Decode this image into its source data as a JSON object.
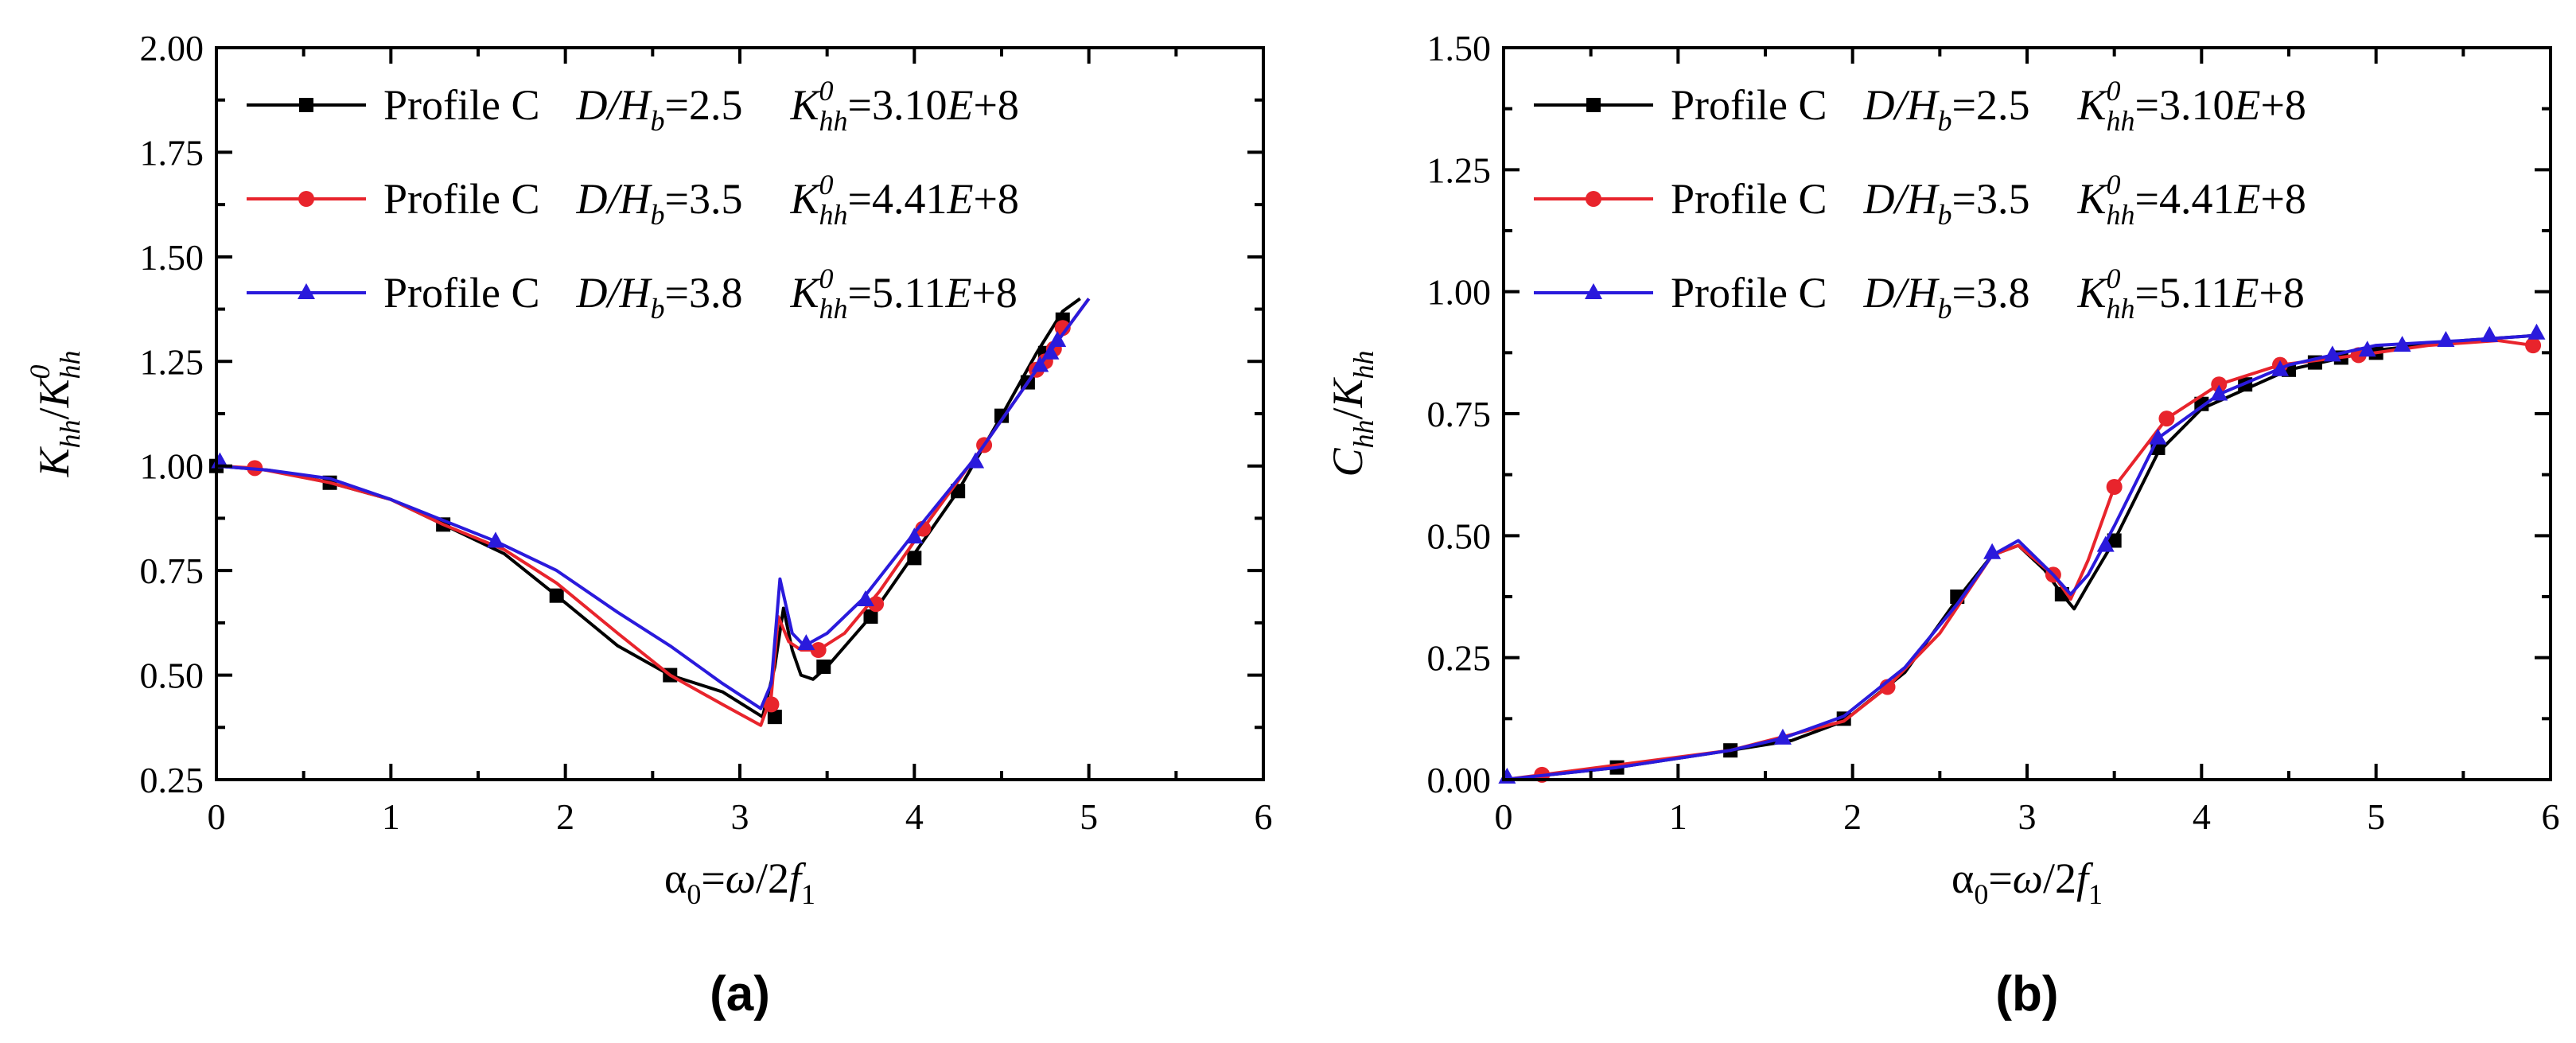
{
  "chart_data": [
    {
      "type": "line",
      "panel_label": "(a)",
      "xlabel": "α0=ω/2f1",
      "ylabel": "Khh/Khh0",
      "xlim": [
        0,
        6
      ],
      "ylim": [
        0.25,
        2.0
      ],
      "xticks": [
        "0",
        "1",
        "2",
        "3",
        "4",
        "5",
        "6"
      ],
      "yticks": [
        "0.25",
        "0.50",
        "0.75",
        "1.00",
        "1.25",
        "1.50",
        "1.75",
        "2.00"
      ],
      "legend_position": "top-left",
      "series": [
        {
          "name": "Profile C D/Hb=2.5 Khh0=3.10E+8",
          "profile": "Profile C",
          "ratio_value": "2.5",
          "k0_value": "3.10E+8",
          "color": "#000000",
          "marker": "square",
          "line_x": [
            0,
            0.3,
            0.65,
            1.0,
            1.3,
            1.65,
            1.95,
            2.3,
            2.6,
            2.9,
            3.13,
            3.2,
            3.25,
            3.3,
            3.35,
            3.42,
            3.5,
            3.75,
            4.0,
            4.25,
            4.5,
            4.7,
            4.85,
            4.95
          ],
          "line_y": [
            1.0,
            0.99,
            0.96,
            0.92,
            0.86,
            0.79,
            0.69,
            0.57,
            0.5,
            0.46,
            0.4,
            0.52,
            0.66,
            0.56,
            0.5,
            0.49,
            0.52,
            0.64,
            0.79,
            0.94,
            1.12,
            1.27,
            1.37,
            1.4
          ],
          "marker_x": [
            0,
            0.65,
            1.3,
            1.95,
            2.6,
            3.2,
            3.48,
            3.75,
            4.0,
            4.25,
            4.5,
            4.65,
            4.75,
            4.85
          ],
          "marker_y": [
            1.0,
            0.96,
            0.86,
            0.69,
            0.5,
            0.4,
            0.52,
            0.64,
            0.78,
            0.94,
            1.12,
            1.2,
            1.27,
            1.35
          ]
        },
        {
          "name": "Profile C D/Hb=3.5 Khh0=4.41E+8",
          "profile": "Profile C",
          "ratio_value": "3.5",
          "k0_value": "4.41E+8",
          "color": "#e8242c",
          "marker": "circle",
          "line_x": [
            0,
            0.22,
            0.65,
            1.0,
            1.3,
            1.65,
            1.95,
            2.3,
            2.6,
            2.9,
            3.12,
            3.18,
            3.22,
            3.28,
            3.35,
            3.45,
            3.6,
            3.8,
            4.05,
            4.4,
            4.7,
            5.0
          ],
          "line_y": [
            1.0,
            0.995,
            0.96,
            0.92,
            0.86,
            0.8,
            0.72,
            0.6,
            0.5,
            0.43,
            0.38,
            0.45,
            0.64,
            0.58,
            0.56,
            0.56,
            0.6,
            0.7,
            0.85,
            1.05,
            1.23,
            1.4
          ],
          "marker_x": [
            0.22,
            3.18,
            3.45,
            3.78,
            4.05,
            4.4,
            4.7,
            4.75,
            4.8,
            4.85
          ],
          "marker_y": [
            0.995,
            0.43,
            0.56,
            0.67,
            0.85,
            1.05,
            1.23,
            1.25,
            1.28,
            1.33
          ]
        },
        {
          "name": "Profile C D/Hb=3.8 Khh0=5.11E+8",
          "profile": "Profile C",
          "ratio_value": "3.8",
          "k0_value": "5.11E+8",
          "color": "#2a1adc",
          "marker": "triangle",
          "line_x": [
            0,
            0.3,
            0.65,
            1.0,
            1.3,
            1.6,
            1.95,
            2.3,
            2.6,
            2.9,
            3.12,
            3.18,
            3.23,
            3.3,
            3.37,
            3.5,
            3.7,
            4.0,
            4.35,
            4.7,
            5.0
          ],
          "line_y": [
            1.0,
            0.99,
            0.97,
            0.92,
            0.87,
            0.82,
            0.75,
            0.65,
            0.57,
            0.48,
            0.42,
            0.48,
            0.73,
            0.6,
            0.57,
            0.6,
            0.68,
            0.84,
            1.02,
            1.23,
            1.4
          ],
          "marker_x": [
            0.02,
            1.6,
            3.38,
            3.72,
            4.0,
            4.35,
            4.72,
            4.78,
            4.82
          ],
          "marker_y": [
            1.01,
            0.82,
            0.575,
            0.68,
            0.83,
            1.01,
            1.24,
            1.27,
            1.3
          ]
        }
      ]
    },
    {
      "type": "line",
      "panel_label": "(b)",
      "xlabel": "α0=ω/2f1",
      "ylabel": "Chh/Khh",
      "xlim": [
        0,
        6
      ],
      "ylim": [
        0.0,
        1.5
      ],
      "xticks": [
        "0",
        "1",
        "2",
        "3",
        "4",
        "5",
        "6"
      ],
      "yticks": [
        "0.00",
        "0.25",
        "0.50",
        "0.75",
        "1.00",
        "1.25",
        "1.50"
      ],
      "legend_position": "top-left",
      "series": [
        {
          "name": "Profile C D/Hb=2.5 Khh0=3.10E+8",
          "profile": "Profile C",
          "ratio_value": "2.5",
          "k0_value": "3.10E+8",
          "color": "#000000",
          "marker": "square",
          "line_x": [
            0,
            0.65,
            1.3,
            1.65,
            1.95,
            2.3,
            2.6,
            2.8,
            2.95,
            3.1,
            3.2,
            3.27,
            3.35,
            3.5,
            3.75,
            4.0,
            4.5,
            5.0,
            5.5,
            5.9
          ],
          "line_y": [
            0.0,
            0.025,
            0.06,
            0.08,
            0.12,
            0.22,
            0.37,
            0.46,
            0.48,
            0.43,
            0.38,
            0.35,
            0.4,
            0.49,
            0.67,
            0.76,
            0.84,
            0.88,
            0.9,
            0.91
          ],
          "marker_x": [
            0.65,
            1.3,
            1.95,
            2.6,
            3.2,
            3.5,
            3.75,
            4.0,
            4.25,
            4.5,
            4.65,
            4.8,
            5.0
          ],
          "marker_y": [
            0.025,
            0.06,
            0.125,
            0.375,
            0.38,
            0.49,
            0.68,
            0.77,
            0.81,
            0.84,
            0.855,
            0.865,
            0.875
          ]
        },
        {
          "name": "Profile C D/Hb=3.5 Khh0=4.41E+8",
          "profile": "Profile C",
          "ratio_value": "3.5",
          "k0_value": "4.41E+8",
          "color": "#e8242c",
          "marker": "circle",
          "line_x": [
            0,
            0.22,
            0.65,
            1.3,
            1.95,
            2.2,
            2.5,
            2.8,
            2.95,
            3.15,
            3.25,
            3.35,
            3.5,
            3.8,
            4.1,
            4.45,
            4.9,
            5.3,
            5.7,
            5.9
          ],
          "line_y": [
            0.0,
            0.01,
            0.03,
            0.06,
            0.12,
            0.19,
            0.3,
            0.46,
            0.48,
            0.42,
            0.37,
            0.45,
            0.6,
            0.74,
            0.81,
            0.85,
            0.87,
            0.89,
            0.9,
            0.89
          ],
          "marker_x": [
            0.22,
            2.2,
            3.15,
            3.5,
            3.8,
            4.1,
            4.45,
            4.9,
            5.9
          ],
          "marker_y": [
            0.01,
            0.19,
            0.42,
            0.6,
            0.74,
            0.81,
            0.85,
            0.87,
            0.89
          ]
        },
        {
          "name": "Profile C D/Hb=3.8 Khh0=5.11E+8",
          "profile": "Profile C",
          "ratio_value": "3.8",
          "k0_value": "5.11E+8",
          "color": "#2a1adc",
          "marker": "triangle",
          "line_x": [
            0,
            0.65,
            1.3,
            1.6,
            1.95,
            2.3,
            2.6,
            2.8,
            2.95,
            3.15,
            3.25,
            3.35,
            3.5,
            3.75,
            4.1,
            4.5,
            5.0,
            5.5,
            5.9
          ],
          "line_y": [
            0.0,
            0.025,
            0.06,
            0.085,
            0.13,
            0.23,
            0.36,
            0.46,
            0.49,
            0.42,
            0.38,
            0.42,
            0.52,
            0.7,
            0.79,
            0.85,
            0.89,
            0.9,
            0.91
          ],
          "marker_x": [
            0.02,
            1.6,
            2.8,
            3.45,
            3.75,
            4.1,
            4.45,
            4.75,
            4.95,
            5.15,
            5.4,
            5.65,
            5.92
          ],
          "marker_y": [
            0.005,
            0.085,
            0.465,
            0.48,
            0.7,
            0.79,
            0.84,
            0.87,
            0.88,
            0.89,
            0.9,
            0.91,
            0.915
          ]
        }
      ]
    }
  ]
}
